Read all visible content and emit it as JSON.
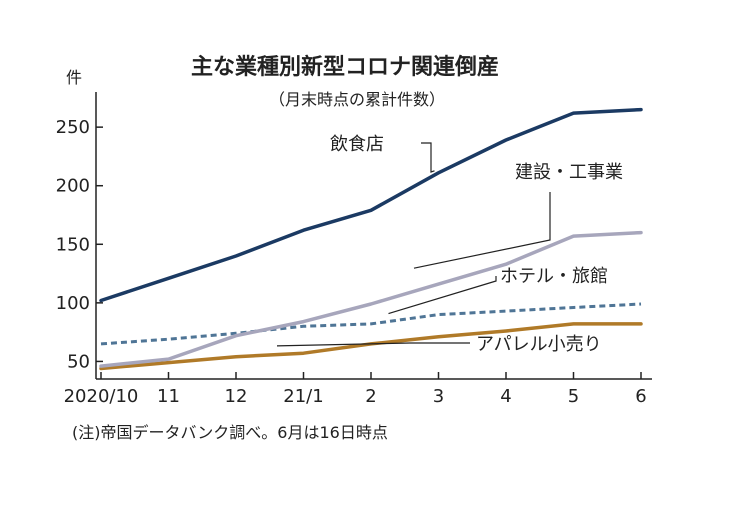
{
  "chart_data": {
    "type": "line",
    "title": "主な業種別新型コロナ関連倒産",
    "subtitle": "（月末時点の累計件数）",
    "y_unit": "件",
    "note": "(注)帝国データバンク調べ。6月は16日時点",
    "categories": [
      "2020/10",
      "11",
      "12",
      "21/1",
      "2",
      "3",
      "4",
      "5",
      "6"
    ],
    "ylim": [
      35,
      280
    ],
    "yticks": [
      50,
      100,
      150,
      200,
      250
    ],
    "grid": false,
    "series": [
      {
        "name": "飲食店",
        "color": "#1b3a63",
        "dash": false,
        "values": [
          102,
          121,
          140,
          162,
          179,
          211,
          239,
          262,
          265
        ]
      },
      {
        "name": "建設・工事業",
        "color": "#a7a6bc",
        "dash": false,
        "values": [
          46,
          52,
          72,
          84,
          99,
          116,
          133,
          157,
          160
        ]
      },
      {
        "name": "ホテル・旅館",
        "color": "#4f7596",
        "dash": true,
        "values": [
          65,
          69,
          74,
          80,
          82,
          90,
          93,
          96,
          99
        ]
      },
      {
        "name": "アパレル小売り",
        "color": "#b07a28",
        "dash": false,
        "values": [
          44,
          49,
          54,
          57,
          65,
          71,
          76,
          82,
          82
        ]
      }
    ]
  }
}
